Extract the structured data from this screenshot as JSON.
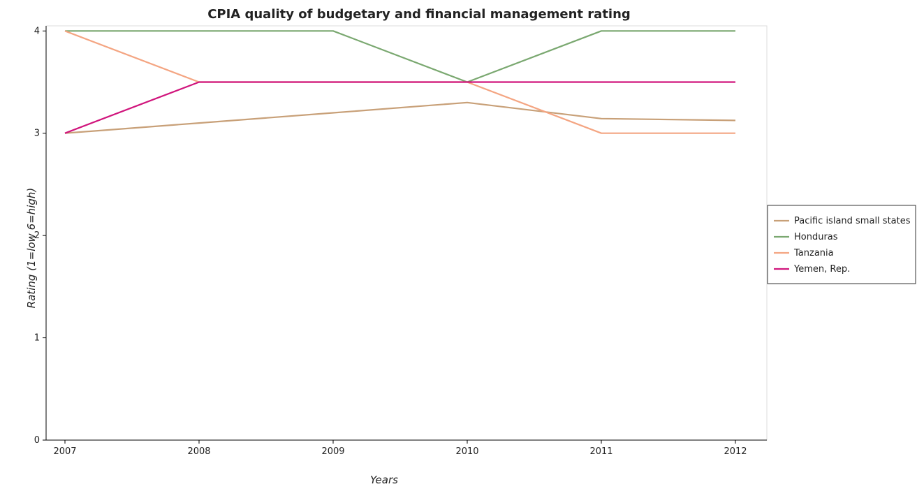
{
  "chart_data": {
    "type": "line",
    "title": "CPIA quality of budgetary and financial management rating",
    "xlabel": "Years",
    "ylabel": "Rating (1=low 6=high)",
    "categories": [
      "2007",
      "2008",
      "2009",
      "2010",
      "2011",
      "2012"
    ],
    "ylim": [
      0,
      4.05
    ],
    "yticks": [
      0,
      1,
      2,
      3,
      4
    ],
    "grid": false,
    "legend_position": "right",
    "series": [
      {
        "name": "Pacific island small states",
        "color": "#c8a078",
        "values": [
          3.0,
          3.1,
          3.2,
          3.3,
          3.143,
          3.125
        ]
      },
      {
        "name": "Honduras",
        "color": "#7aa870",
        "values": [
          4.0,
          4.0,
          4.0,
          3.5,
          4.0,
          4.0
        ]
      },
      {
        "name": "Tanzania",
        "color": "#f4a582",
        "values": [
          4.0,
          3.5,
          3.5,
          3.5,
          3.0,
          3.0
        ]
      },
      {
        "name": "Yemen, Rep.",
        "color": "#d0147c",
        "values": [
          3.0,
          3.5,
          3.5,
          3.5,
          3.5,
          3.5
        ]
      }
    ]
  }
}
